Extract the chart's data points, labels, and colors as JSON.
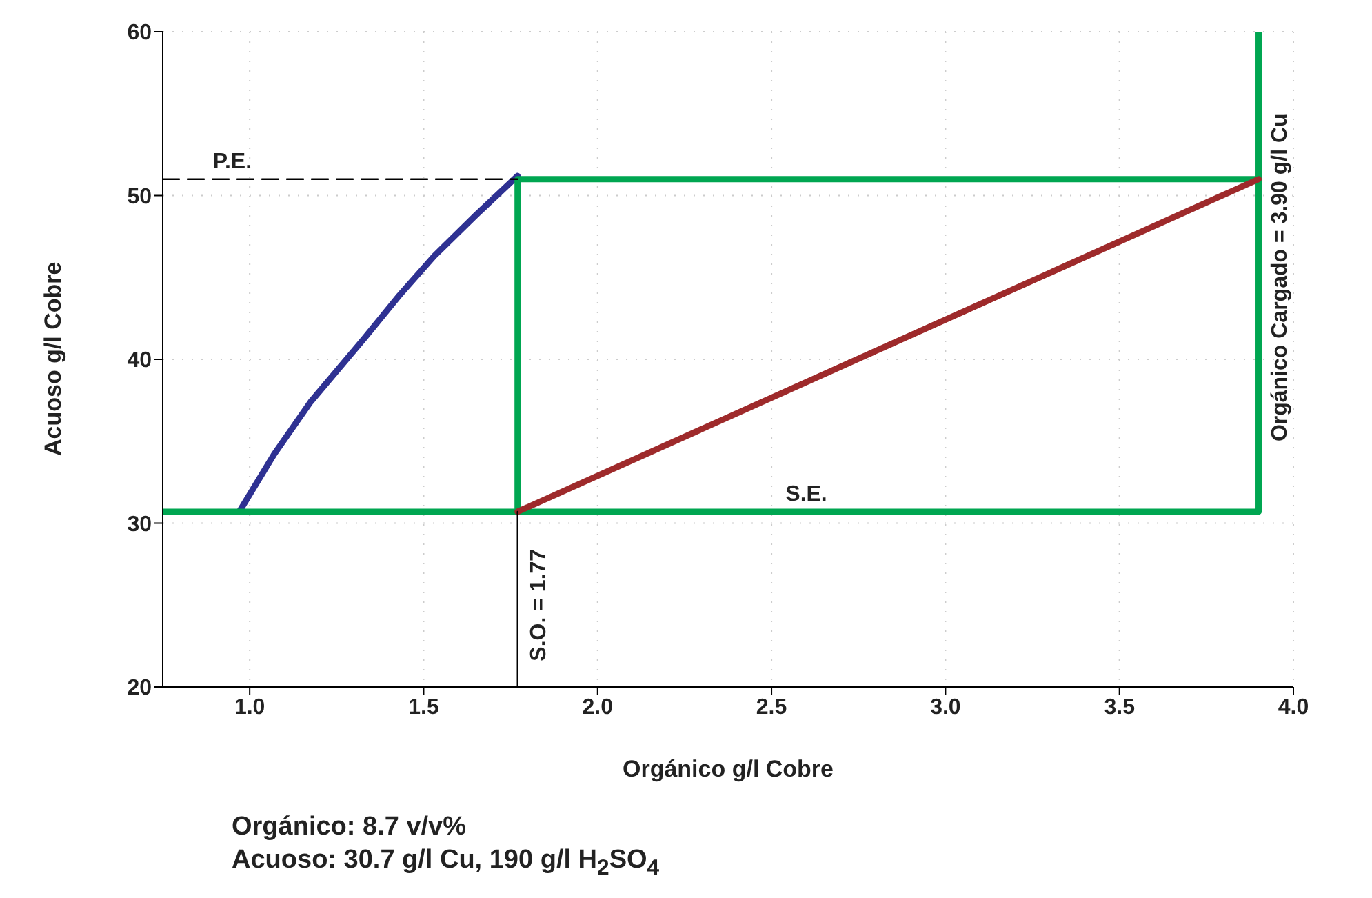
{
  "chart_data": {
    "type": "line",
    "xlabel": "Orgánico g/l Cobre",
    "ylabel": "Acuoso g/l Cobre",
    "xlim": [
      0.75,
      4.0
    ],
    "xticks": [
      {
        "value": 1,
        "label": "1.0"
      },
      {
        "value": 1.5,
        "label": "1.5"
      },
      {
        "value": 2,
        "label": "2.0"
      },
      {
        "value": 2.5,
        "label": "2.5"
      },
      {
        "value": 3,
        "label": "3.0"
      },
      {
        "value": 3.5,
        "label": "3.5"
      },
      {
        "value": 4,
        "label": "4.0"
      }
    ],
    "ylim": [
      20,
      60
    ],
    "yticks": [
      20,
      30,
      40,
      50,
      60
    ],
    "grid": true,
    "marker": "none",
    "series": [
      {
        "color": "#2e3192",
        "x": [
          0.97,
          1.07,
          1.175,
          1.33,
          1.43,
          1.53,
          1.65,
          1.77
        ],
        "values": [
          30.7,
          34.2,
          37.4,
          41.3,
          43.9,
          46.3,
          48.8,
          51.2
        ]
      },
      {
        "color": "#00a651",
        "x": [
          0.75,
          3.9,
          3.9
        ],
        "values": [
          30.7,
          30.7,
          60
        ]
      },
      {
        "color": "#00a651",
        "x": [
          1.77,
          1.77,
          3.9
        ],
        "values": [
          30.7,
          51,
          51
        ]
      },
      {
        "color": "#9e2a2b",
        "x": [
          1.77,
          3.9
        ],
        "values": [
          30.7,
          51
        ]
      },
      {
        "color": "#000000",
        "x": [
          0.75,
          1.77
        ],
        "values": [
          51,
          51
        ],
        "line_style": "dashed"
      },
      {
        "color": "#000000",
        "x": [
          1.77,
          1.77
        ],
        "values": [
          20,
          30.7
        ]
      }
    ],
    "annotations": [
      {
        "text": "P.E.",
        "x": 0.95,
        "y": 51
      },
      {
        "text": "S.E.",
        "x": 2.6,
        "y": 30.7
      },
      {
        "text": "S.O. = 1.77",
        "x": 1.77,
        "y": 25
      },
      {
        "text": "Orgánico Cargado = 3.90 g/l Cu",
        "x": 3.9,
        "y": 45
      },
      "Orgánico: 8.7 v/v%",
      "Acuoso: 30.7 g/l Cu, 190 g/l H$_{2}$SO$_{4}$"
    ]
  }
}
